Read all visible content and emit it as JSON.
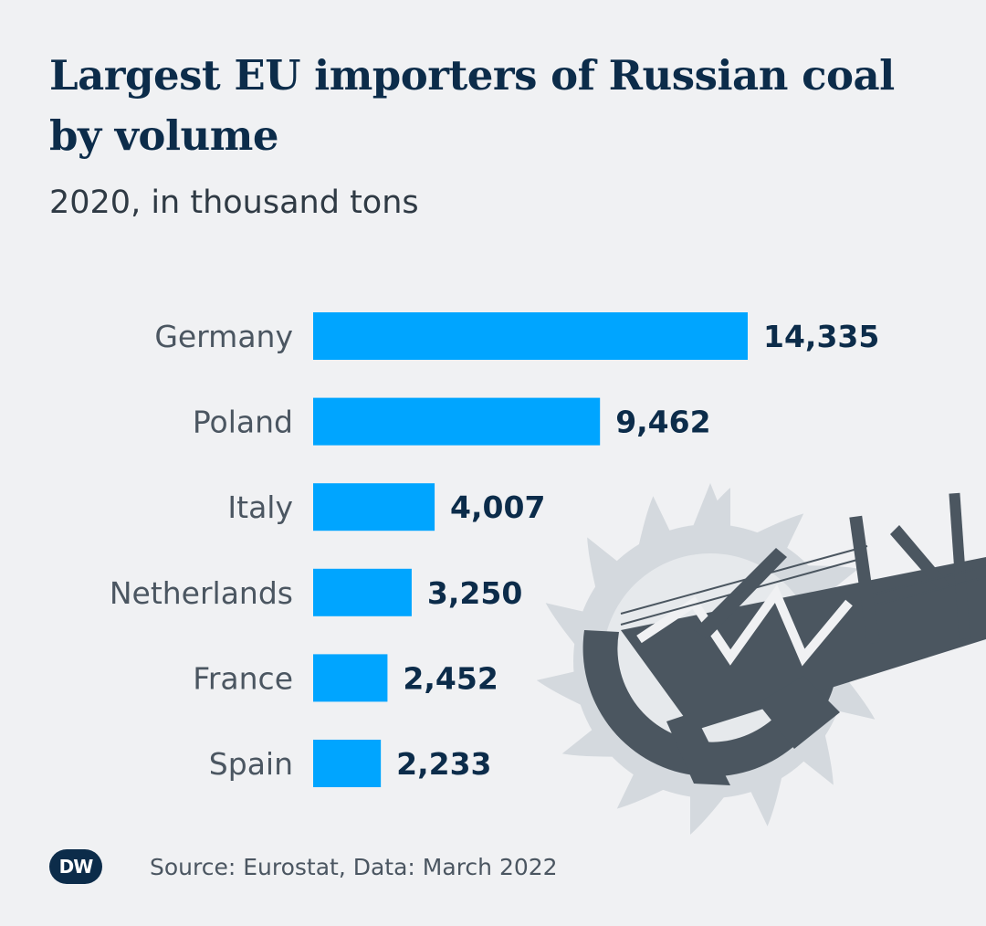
{
  "header": {
    "title": "Largest EU importers of Russian coal by volume",
    "subtitle": "2020, in thousand tons"
  },
  "chart_data": {
    "type": "bar",
    "orientation": "horizontal",
    "categories": [
      "Germany",
      "Poland",
      "Italy",
      "Netherlands",
      "France",
      "Spain"
    ],
    "values": [
      14335,
      9462,
      4007,
      3250,
      2452,
      2233
    ],
    "value_labels": [
      "14,335",
      "9,462",
      "4,007",
      "3,250",
      "2,452",
      "2,233"
    ],
    "title": "Largest EU importers of Russian coal by volume",
    "subtitle": "2020, in thousand tons",
    "xlabel": "",
    "ylabel": "",
    "grid": false,
    "colors": {
      "bar": "#00a5ff",
      "value_text": "#0c2c4a",
      "category_text": "#4b5661"
    }
  },
  "footer": {
    "logo": "DW",
    "source": "Source: Eurostat, Data: March 2022"
  },
  "illustration": {
    "icon": "bucket-wheel-excavator-icon"
  },
  "colors": {
    "background": "#f0f1f3",
    "title": "#0c2c4a",
    "excavator_dark": "#4b5660",
    "excavator_light": "#d4d9de"
  }
}
